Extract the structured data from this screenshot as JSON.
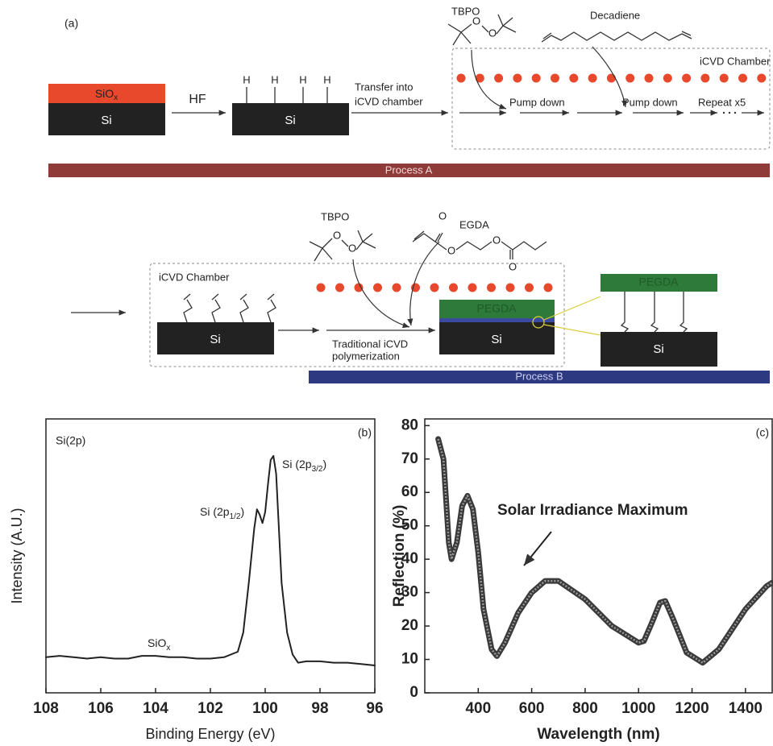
{
  "diagram": {
    "panel": "(a)",
    "step1": {
      "top": {
        "text": "SiO",
        "sub": "x"
      },
      "bottom": "Si"
    },
    "reagent": "HF",
    "step2": {
      "hydrogens": [
        "H",
        "H",
        "H",
        "H"
      ],
      "substrate": "Si"
    },
    "transfer": [
      "Transfer into",
      "iCVD chamber"
    ],
    "chamber_a": {
      "label": "iCVD Chamber",
      "initiator": "TBPO",
      "initiator_atoms": [
        "O",
        "O"
      ],
      "monomer": "Decadiene",
      "steps": [
        "Pump down",
        "Pump down",
        "Repeat x5"
      ]
    },
    "process_a": "Process A",
    "chamber_b": {
      "label": "iCVD Chamber",
      "substrate": "Si",
      "initiator": "TBPO",
      "initiator_atoms": [
        "O",
        "O"
      ],
      "monomer": "EGDA",
      "monomer_atoms": [
        "O",
        "O",
        "O",
        "O"
      ],
      "step": [
        "Traditional iCVD",
        "polymerization"
      ],
      "film": "PEGDA",
      "film_substrate": "Si"
    },
    "zoom": {
      "film": "PEGDA",
      "substrate": "Si"
    },
    "process_b": "Process B"
  },
  "chart_data": [
    {
      "type": "line",
      "panel": "(b)",
      "label": "Si(2p)",
      "x_label": "Binding Energy (eV)",
      "y_label": "Intensity (A.U.)",
      "xlim": [
        108,
        96
      ],
      "xticks": [
        108,
        106,
        104,
        102,
        100,
        98,
        96
      ],
      "ylim": [
        0,
        100
      ],
      "x": [
        108,
        107.5,
        107,
        106.5,
        106,
        105.5,
        105,
        104.5,
        104,
        103.5,
        103,
        102.5,
        102,
        101.5,
        101,
        100.8,
        100.6,
        100.4,
        100.3,
        100.2,
        100.1,
        100,
        99.9,
        99.8,
        99.7,
        99.6,
        99.5,
        99.4,
        99.2,
        99,
        98.8,
        98.5,
        98,
        97.5,
        97,
        96.5,
        96
      ],
      "values": [
        13,
        13.5,
        13,
        12.5,
        13,
        12.5,
        12.5,
        13.5,
        13.5,
        13,
        13,
        12.5,
        12.5,
        13,
        15,
        22,
        40,
        60,
        67,
        65,
        62,
        66,
        76,
        85,
        86.5,
        80,
        60,
        40,
        22,
        14,
        11,
        11.5,
        11.5,
        11,
        11,
        10.5,
        10
      ],
      "color": "#222",
      "annotations": [
        {
          "text": "Si (2p",
          "sub": "3/2",
          "tail": ")"
        },
        {
          "text": "Si (2p",
          "sub": "1/2",
          "tail": ")"
        },
        {
          "text": "SiO",
          "sub": "x"
        }
      ]
    },
    {
      "type": "line",
      "panel": "(c)",
      "x_label": "Wavelength (nm)",
      "y_label": "Reflection (%)",
      "xlim": [
        200,
        1500
      ],
      "xticks": [
        400,
        600,
        800,
        1000,
        1200,
        1400
      ],
      "ylim": [
        0,
        82
      ],
      "yticks": [
        0,
        10,
        20,
        30,
        40,
        50,
        60,
        70,
        80
      ],
      "x": [
        250,
        270,
        290,
        300,
        320,
        340,
        360,
        380,
        400,
        420,
        450,
        470,
        500,
        550,
        600,
        650,
        700,
        800,
        900,
        1000,
        1020,
        1050,
        1080,
        1100,
        1130,
        1180,
        1240,
        1300,
        1400,
        1480,
        1500
      ],
      "values": [
        76,
        70,
        45,
        40,
        45,
        56,
        59,
        55,
        42,
        25,
        13,
        11,
        15,
        24,
        30,
        33.5,
        33.5,
        28,
        20,
        15,
        15.5,
        21,
        27,
        27.5,
        22,
        12,
        9,
        13,
        25,
        32,
        33
      ],
      "color": "#3a3a3a",
      "annotations": [
        {
          "text": "Solar Irradiance Maximum"
        }
      ]
    }
  ]
}
